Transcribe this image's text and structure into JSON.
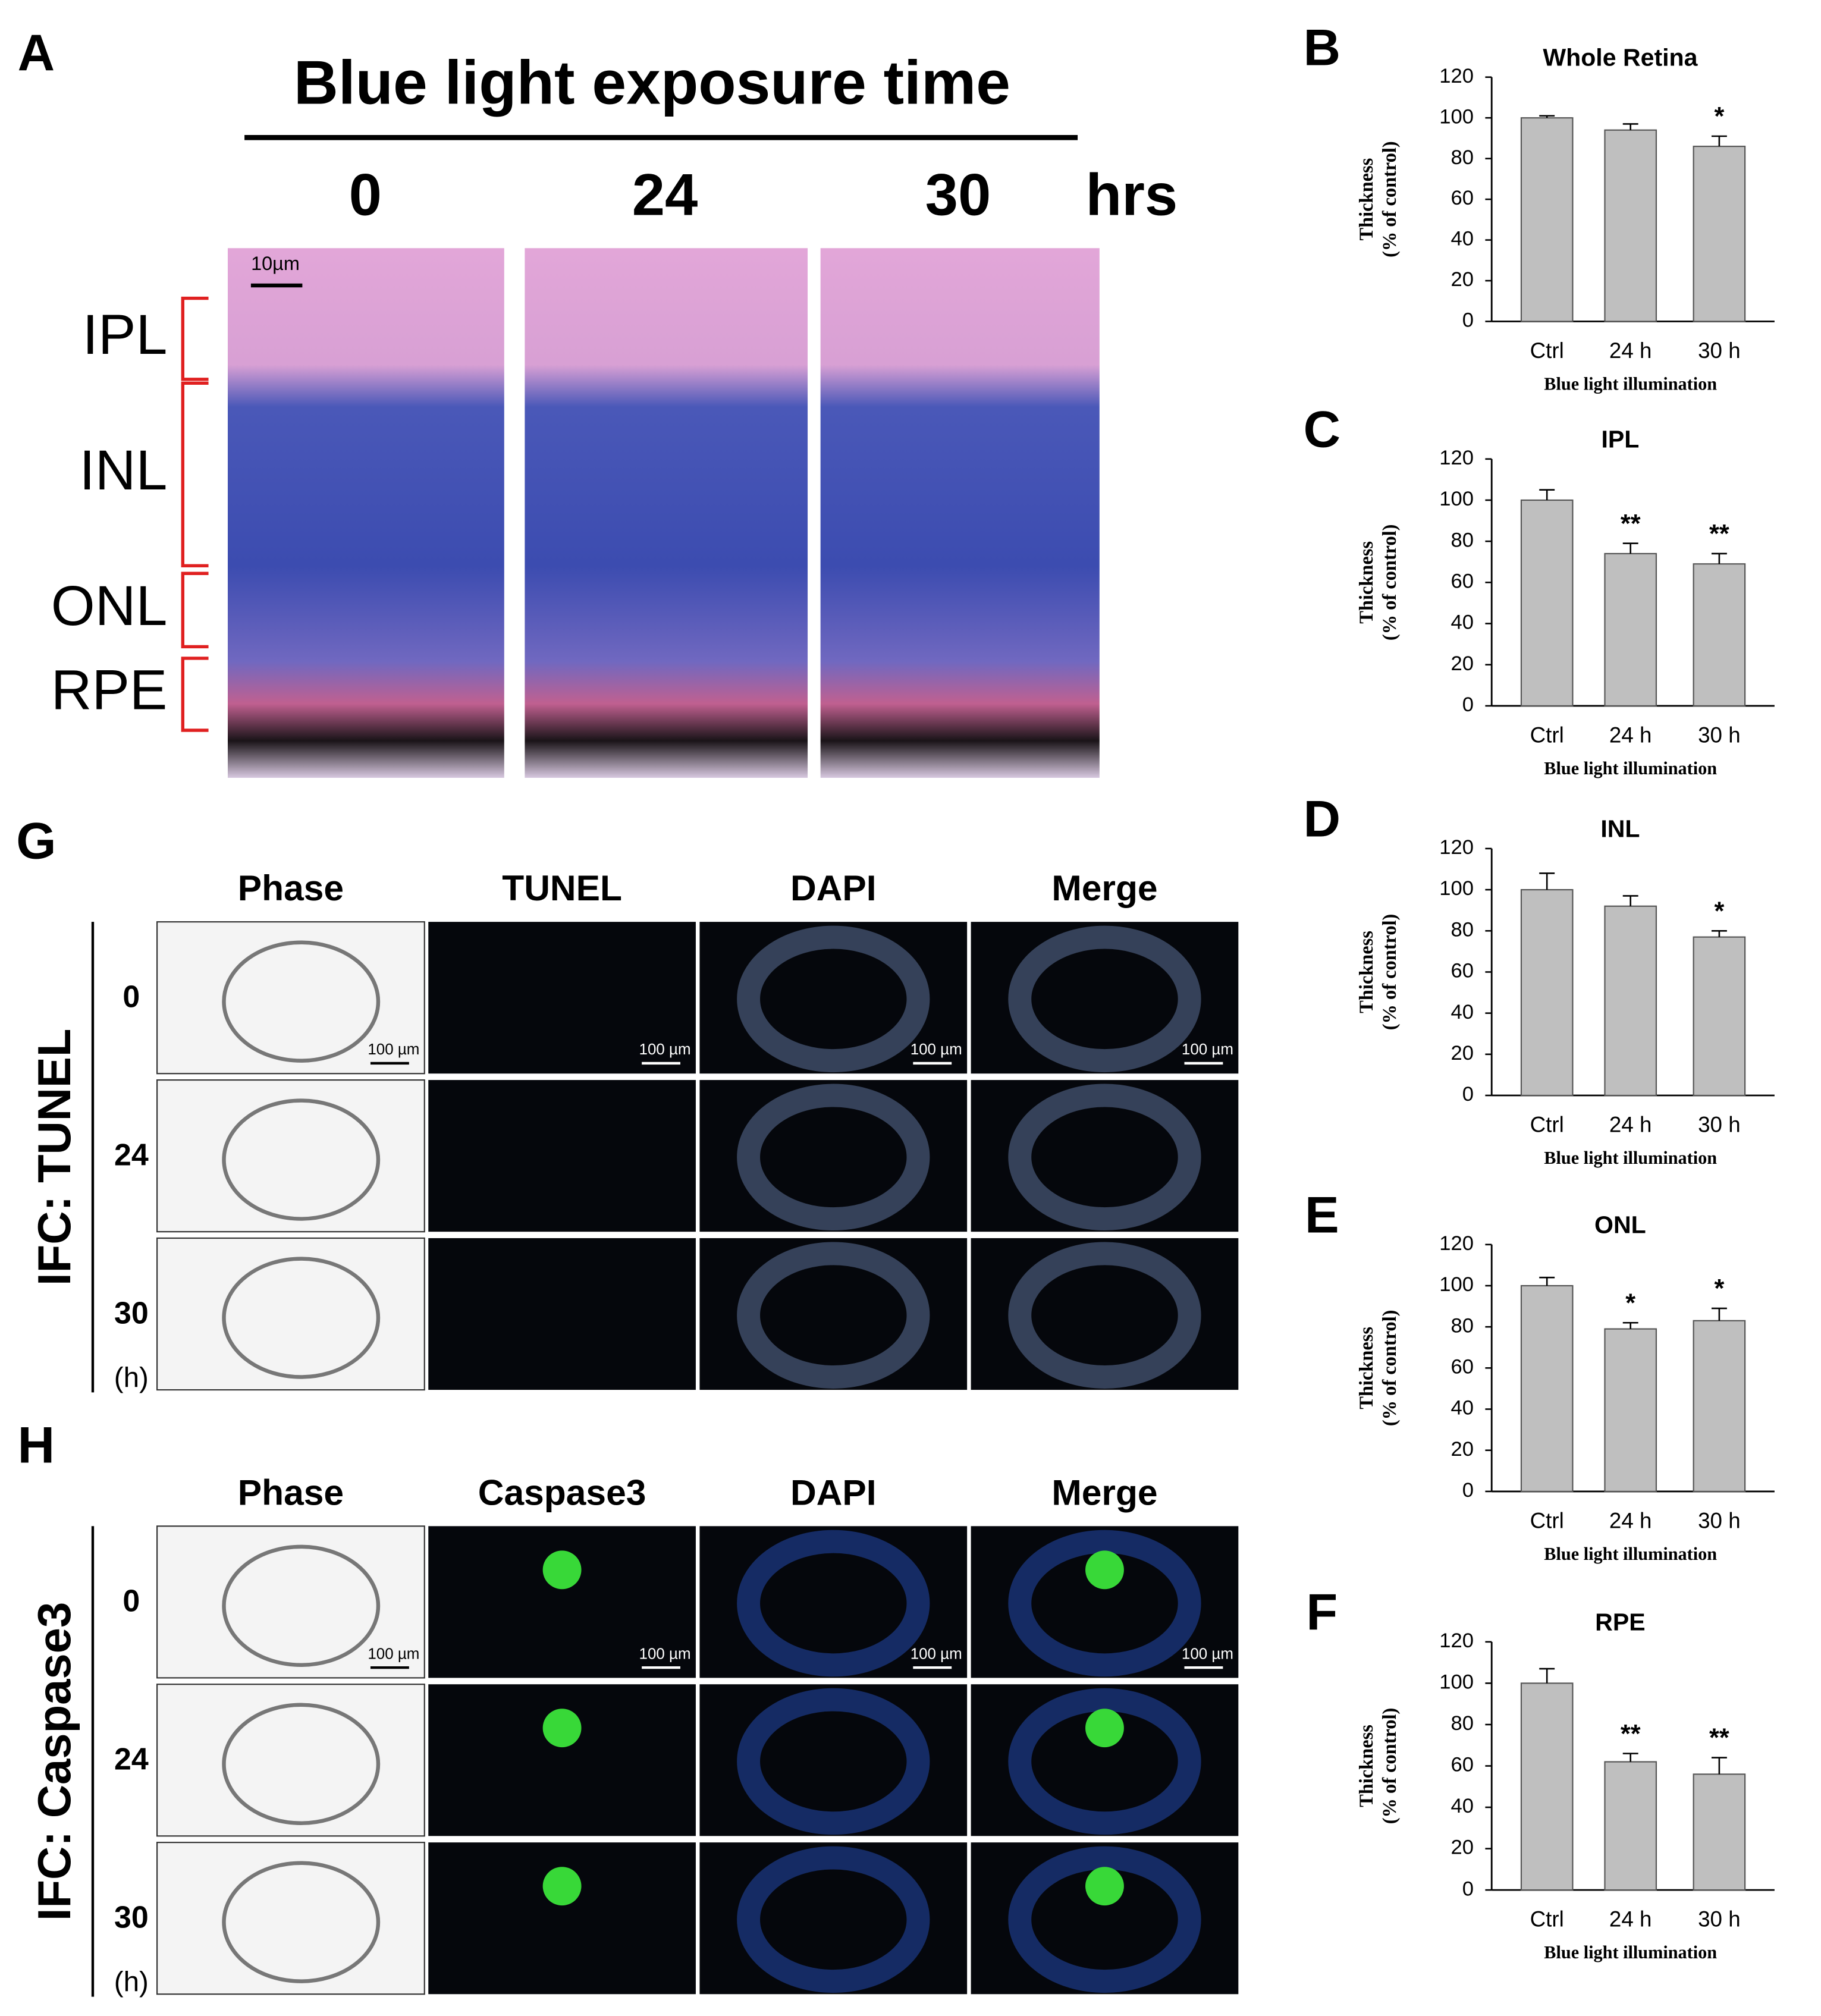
{
  "panel_a": {
    "label": "A",
    "title": "Blue light exposure time",
    "columns": [
      "0",
      "24",
      "30"
    ],
    "unit": "hrs",
    "layers": [
      "IPL",
      "INL",
      "ONL",
      "RPE"
    ],
    "scale": "10µm"
  },
  "panel_g": {
    "label": "G",
    "row_title": "IFC: TUNEL",
    "columns": [
      "Phase",
      "TUNEL",
      "DAPI",
      "Merge"
    ],
    "rows": [
      "0",
      "24",
      "30"
    ],
    "unit": "(h)",
    "scale": "100 µm"
  },
  "panel_h": {
    "label": "H",
    "row_title": "IFC: Caspase3",
    "columns": [
      "Phase",
      "Caspase3",
      "DAPI",
      "Merge"
    ],
    "rows": [
      "0",
      "24",
      "30"
    ],
    "unit": "(h)",
    "scale": "100 µm"
  },
  "chart_data": [
    {
      "type": "bar",
      "panel_label": "B",
      "title": "Whole Retina",
      "ylabel": [
        "Thickness",
        "(% of control)"
      ],
      "xlabel": "Blue light illumination",
      "categories": [
        "Ctrl",
        "24 h",
        "30 h"
      ],
      "values": [
        100,
        94,
        86
      ],
      "errors": [
        1,
        3,
        5
      ],
      "annotations": [
        null,
        null,
        "*"
      ],
      "color": "#bfbfbf",
      "ylim": [
        0,
        120
      ],
      "yticks": [
        0,
        20,
        40,
        60,
        80,
        100,
        120
      ]
    },
    {
      "type": "bar",
      "panel_label": "C",
      "title": "IPL",
      "ylabel": [
        "Thickness",
        "(% of control)"
      ],
      "xlabel": "Blue light illumination",
      "categories": [
        "Ctrl",
        "24 h",
        "30 h"
      ],
      "values": [
        100,
        74,
        69
      ],
      "errors": [
        5,
        5,
        5
      ],
      "annotations": [
        null,
        "**",
        "**"
      ],
      "color": "#bfbfbf",
      "ylim": [
        0,
        120
      ],
      "yticks": [
        0,
        20,
        40,
        60,
        80,
        100,
        120
      ]
    },
    {
      "type": "bar",
      "panel_label": "D",
      "title": "INL",
      "ylabel": [
        "Thickness",
        "(% of control)"
      ],
      "xlabel": "Blue light illumination",
      "categories": [
        "Ctrl",
        "24 h",
        "30 h"
      ],
      "values": [
        100,
        92,
        77
      ],
      "errors": [
        8,
        5,
        3
      ],
      "annotations": [
        null,
        null,
        "*"
      ],
      "color": "#bfbfbf",
      "ylim": [
        0,
        120
      ],
      "yticks": [
        0,
        20,
        40,
        60,
        80,
        100,
        120
      ]
    },
    {
      "type": "bar",
      "panel_label": "E",
      "title": "ONL",
      "ylabel": [
        "Thickness",
        "(% of control)"
      ],
      "xlabel": "Blue light illumination",
      "categories": [
        "Ctrl",
        "24 h",
        "30 h"
      ],
      "values": [
        100,
        79,
        83
      ],
      "errors": [
        4,
        3,
        6
      ],
      "annotations": [
        null,
        "*",
        "*"
      ],
      "color": "#bfbfbf",
      "ylim": [
        0,
        120
      ],
      "yticks": [
        0,
        20,
        40,
        60,
        80,
        100,
        120
      ]
    },
    {
      "type": "bar",
      "panel_label": "F",
      "title": "RPE",
      "ylabel": [
        "Thickness",
        "(% of control)"
      ],
      "xlabel": "Blue light illumination",
      "categories": [
        "Ctrl",
        "24 h",
        "30 h"
      ],
      "values": [
        100,
        62,
        56
      ],
      "errors": [
        7,
        4,
        8
      ],
      "annotations": [
        null,
        "**",
        "**"
      ],
      "color": "#bfbfbf",
      "ylim": [
        0,
        120
      ],
      "yticks": [
        0,
        20,
        40,
        60,
        80,
        100,
        120
      ]
    }
  ]
}
